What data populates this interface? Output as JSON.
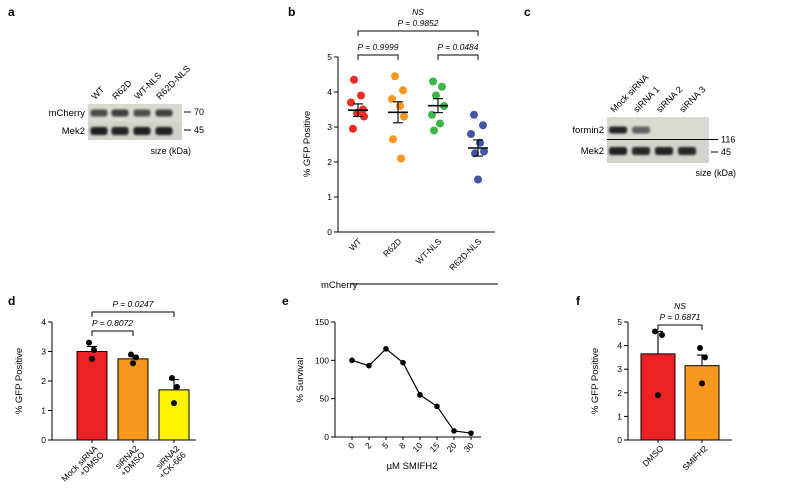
{
  "figure": {
    "background": "#ffffff"
  },
  "panel_a": {
    "label": "a",
    "lane_labels": [
      "WT",
      "R62D",
      "WT-NLS",
      "R62D-NLS"
    ],
    "row_labels": [
      "mCherry",
      "Mek2"
    ],
    "markers": [
      "70",
      "45"
    ],
    "band_intensity": [
      [
        0.72,
        0.78,
        0.7,
        0.78
      ],
      [
        0.95,
        0.92,
        0.95,
        0.93
      ]
    ],
    "size_label": "size (kDa)"
  },
  "panel_b": {
    "label": "b",
    "chart_data": {
      "type": "scatter",
      "ylabel": "% GFP Positive",
      "ylim": [
        0,
        5
      ],
      "yticks": [
        0,
        1,
        2,
        3,
        4,
        5
      ],
      "categories": [
        "WT",
        "R62D",
        "WT-NLS",
        "R62D-NLS"
      ],
      "group_axis_label": "mCherry",
      "series": [
        {
          "name": "WT",
          "color": "#ee2b24",
          "values": [
            4.35,
            3.9,
            3.7,
            3.5,
            3.4,
            3.3,
            2.95
          ],
          "mean": 3.48,
          "sem": 0.18
        },
        {
          "name": "R62D",
          "color": "#f8971d",
          "values": [
            4.45,
            4.05,
            3.8,
            3.6,
            3.3,
            2.65,
            2.1
          ],
          "mean": 3.42,
          "sem": 0.3
        },
        {
          "name": "WT-NLS",
          "color": "#3eb549",
          "values": [
            4.3,
            4.15,
            3.9,
            3.6,
            3.35,
            3.1,
            2.9
          ],
          "mean": 3.61,
          "sem": 0.2
        },
        {
          "name": "R62D-NLS",
          "color": "#3f55a6",
          "values": [
            3.35,
            3.05,
            2.8,
            2.55,
            2.3,
            2.25,
            1.5
          ],
          "mean": 2.4,
          "sem": 0.23
        }
      ],
      "comparisons": [
        {
          "lines": [
            "P = 0.9999"
          ],
          "from": 0,
          "to": 1,
          "level": 1
        },
        {
          "lines": [
            "P = 0.0484"
          ],
          "from": 2,
          "to": 3,
          "level": 1
        },
        {
          "lines": [
            "NS",
            "P = 0.9852"
          ],
          "from": 0,
          "to": 3,
          "level": 2
        }
      ]
    }
  },
  "panel_c": {
    "label": "c",
    "lane_labels": [
      "Mock siRNA",
      "siRNA 1",
      "siRNA 2",
      "siRNA 3"
    ],
    "row_labels": [
      "formin2",
      "Mek2"
    ],
    "markers": [
      "116",
      "45"
    ],
    "band_intensity": [
      [
        0.92,
        0.6,
        0,
        0
      ],
      [
        0.95,
        0.9,
        0.93,
        0.9
      ]
    ],
    "size_label": "size (kDa)"
  },
  "panel_d": {
    "label": "d",
    "chart_data": {
      "type": "bar",
      "ylabel": "% GFP Positive",
      "ylim": [
        0,
        4
      ],
      "yticks": [
        0,
        1,
        2,
        3,
        4
      ],
      "categories": [
        [
          "Mock siRNA",
          "+DMSO"
        ],
        [
          "siRNA2",
          "+DMSO"
        ],
        [
          "siRNA2",
          "+CK-666"
        ]
      ],
      "values": [
        3.0,
        2.75,
        1.7
      ],
      "sem": [
        0.17,
        0.1,
        0.35
      ],
      "colors": [
        "#ed2024",
        "#f8971d",
        "#fef200"
      ],
      "points": [
        [
          3.3,
          3.05,
          2.75
        ],
        [
          2.9,
          2.8,
          2.6
        ],
        [
          2.1,
          1.8,
          1.25
        ]
      ],
      "comparisons": [
        {
          "lines": [
            "P = 0.8072"
          ],
          "from": 0,
          "to": 1,
          "level": 1
        },
        {
          "lines": [
            "P = 0.0247"
          ],
          "from": 0,
          "to": 2,
          "level": 2
        }
      ]
    }
  },
  "panel_e": {
    "label": "e",
    "chart_data": {
      "type": "line",
      "ylabel": "% Survival",
      "xlabel": "µM SMIFH2",
      "ylim": [
        0,
        150
      ],
      "yticks": [
        0,
        50,
        100,
        150
      ],
      "categories": [
        "0",
        "2",
        "5",
        "8",
        "10",
        "15",
        "20",
        "30"
      ],
      "values": [
        100,
        93,
        115,
        97,
        55,
        40,
        8,
        5
      ]
    }
  },
  "panel_f": {
    "label": "f",
    "chart_data": {
      "type": "bar",
      "ylabel": "% GFP Positive",
      "ylim": [
        0,
        5
      ],
      "yticks": [
        0,
        1,
        2,
        3,
        4,
        5
      ],
      "categories": [
        [
          "DMSO"
        ],
        [
          "SMIFH2"
        ]
      ],
      "values": [
        3.65,
        3.15
      ],
      "sem": [
        0.95,
        0.45
      ],
      "colors": [
        "#ed2024",
        "#f8971d"
      ],
      "points": [
        [
          4.6,
          4.45,
          1.9
        ],
        [
          3.9,
          3.5,
          2.4
        ]
      ],
      "comparisons": [
        {
          "lines": [
            "NS",
            "P = 0.6871"
          ],
          "from": 0,
          "to": 1,
          "level": 1
        }
      ]
    }
  }
}
